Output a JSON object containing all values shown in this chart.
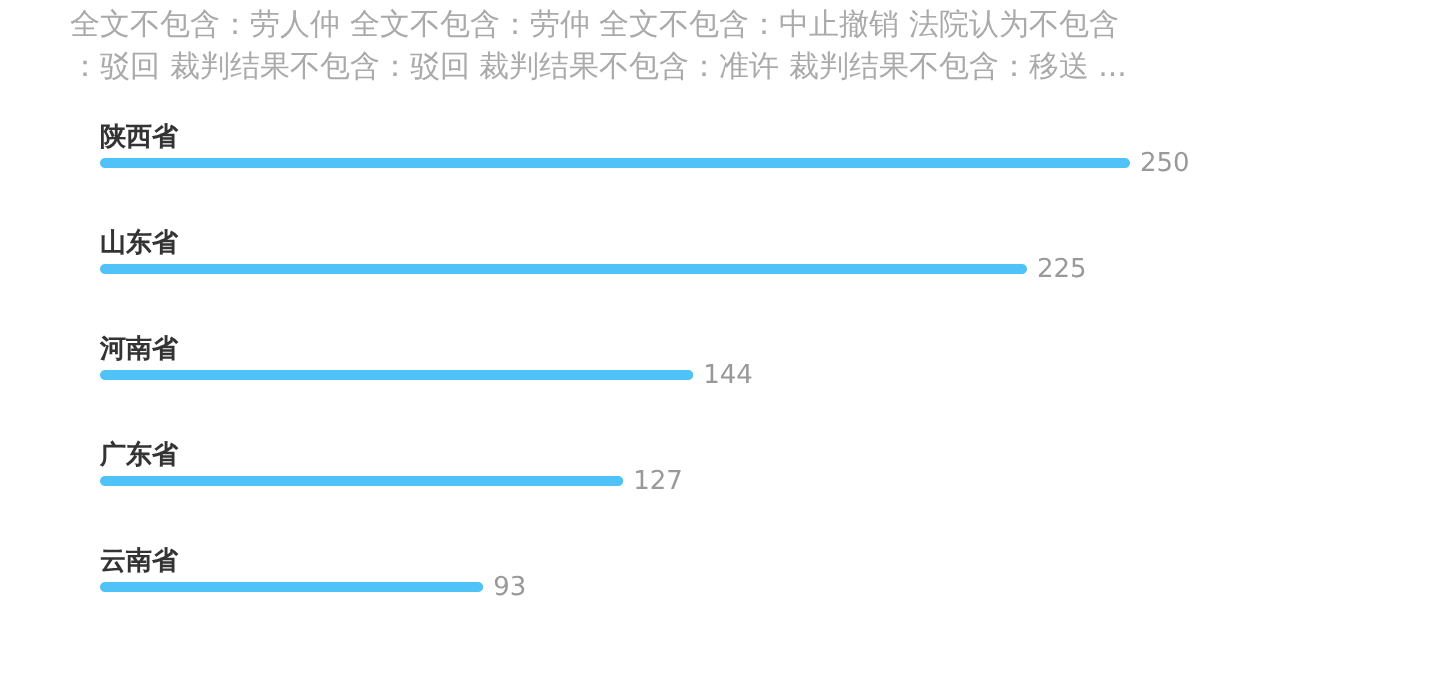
{
  "chart_data": {
    "type": "bar",
    "orientation": "horizontal",
    "title": [
      "全文不包含：劳人仲  全文不包含：劳仲  全文不包含：中止撤销  法院认为不包含",
      "：驳回  裁判结果不包含：驳回  裁判结果不包含：准许  裁判结果不包含：移送 ..."
    ],
    "categories": [
      "陕西省",
      "山东省",
      "河南省",
      "广东省",
      "云南省"
    ],
    "values": [
      250,
      225,
      144,
      127,
      93
    ],
    "color": "#4fc3f7",
    "data_labels": true
  }
}
